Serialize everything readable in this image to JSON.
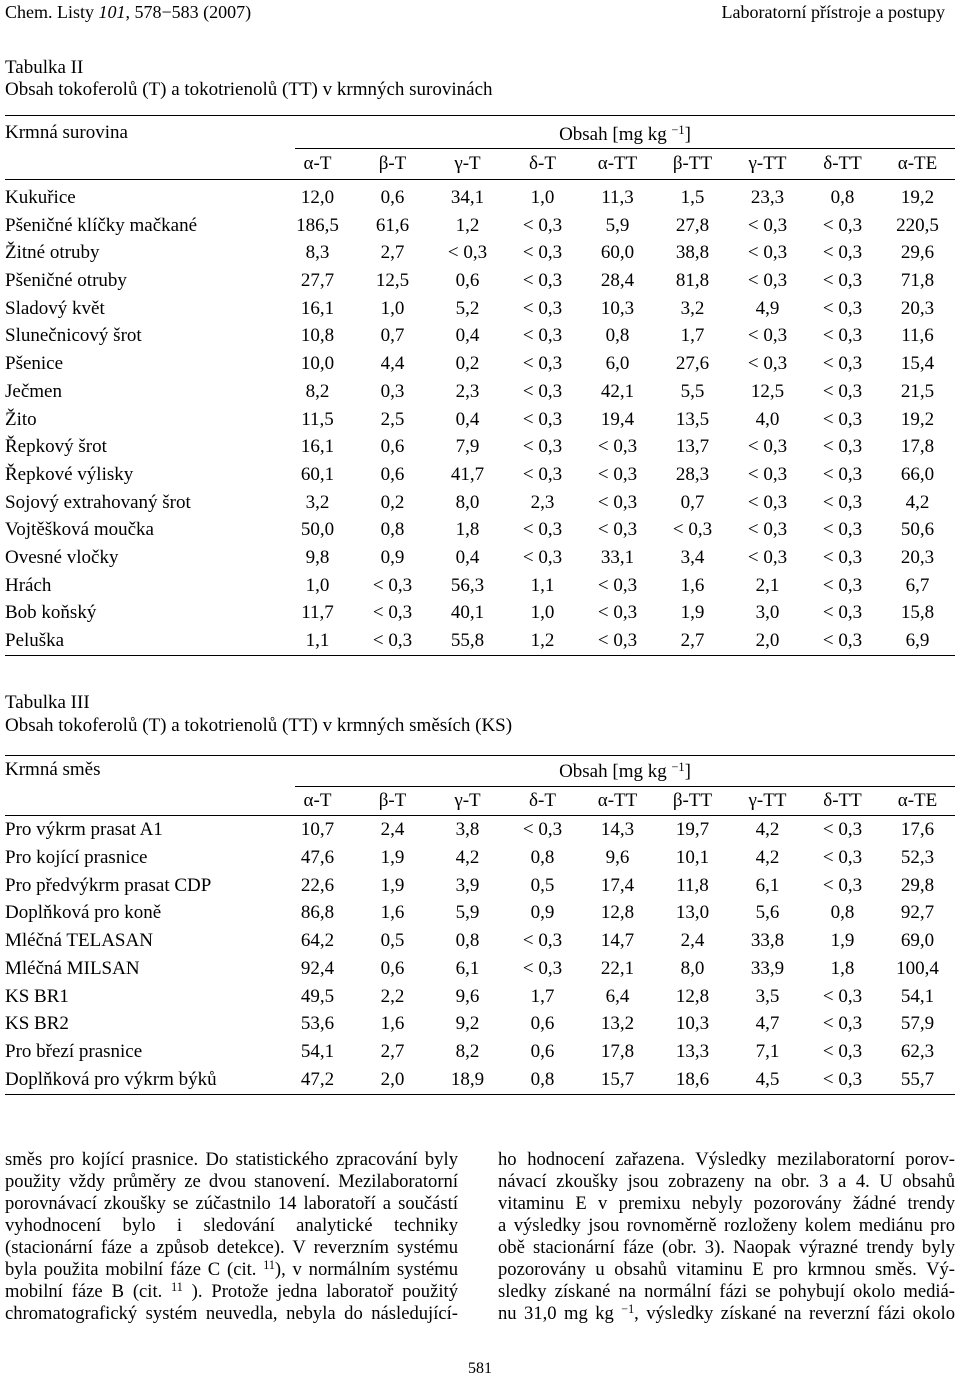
{
  "header": {
    "journal": "Chem. Listy ",
    "volume": "101",
    "pages_year": ", 578−583 (2007)",
    "section": "Laboratorní přístroje a postupy"
  },
  "columns": [
    "α-T",
    "β-T",
    "γ-T",
    "δ-T",
    "α-TT",
    "β-TT",
    "γ-TT",
    "δ-TT",
    "α-TE"
  ],
  "table2": {
    "label": "Tabulka II",
    "caption": "Obsah tokoferolů (T) a tokotrienolů (TT) v krmných surovinách",
    "row_header": "Krmná surovina",
    "unit": {
      "prefix": "Obsah [mg kg ",
      "sup": "−1",
      "suffix": "]"
    },
    "rows": [
      {
        "name": "Kukuřice",
        "values": [
          "12,0",
          "0,6",
          "34,1",
          "1,0",
          "11,3",
          "1,5",
          "23,3",
          "0,8",
          "19,2"
        ]
      },
      {
        "name": "Pšeničné klíčky mačkané",
        "values": [
          "186,5",
          "61,6",
          "1,2",
          "< 0,3",
          "5,9",
          "27,8",
          "< 0,3",
          "< 0,3",
          "220,5"
        ]
      },
      {
        "name": "Žitné otruby",
        "values": [
          "8,3",
          "2,7",
          "< 0,3",
          "< 0,3",
          "60,0",
          "38,8",
          "< 0,3",
          "< 0,3",
          "29,6"
        ]
      },
      {
        "name": "Pšeničné otruby",
        "values": [
          "27,7",
          "12,5",
          "0,6",
          "< 0,3",
          "28,4",
          "81,8",
          "< 0,3",
          "< 0,3",
          "71,8"
        ]
      },
      {
        "name": "Sladový květ",
        "values": [
          "16,1",
          "1,0",
          "5,2",
          "< 0,3",
          "10,3",
          "3,2",
          "4,9",
          "< 0,3",
          "20,3"
        ]
      },
      {
        "name": "Slunečnicový šrot",
        "values": [
          "10,8",
          "0,7",
          "0,4",
          "< 0,3",
          "0,8",
          "1,7",
          "< 0,3",
          "< 0,3",
          "11,6"
        ]
      },
      {
        "name": "Pšenice",
        "values": [
          "10,0",
          "4,4",
          "0,2",
          "< 0,3",
          "6,0",
          "27,6",
          "< 0,3",
          "< 0,3",
          "15,4"
        ]
      },
      {
        "name": "Ječmen",
        "values": [
          "8,2",
          "0,3",
          "2,3",
          "< 0,3",
          "42,1",
          "5,5",
          "12,5",
          "< 0,3",
          "21,5"
        ]
      },
      {
        "name": "Žito",
        "values": [
          "11,5",
          "2,5",
          "0,4",
          "< 0,3",
          "19,4",
          "13,5",
          "4,0",
          "< 0,3",
          "19,2"
        ]
      },
      {
        "name": "Řepkový šrot",
        "values": [
          "16,1",
          "0,6",
          "7,9",
          "< 0,3",
          "< 0,3",
          "13,7",
          "< 0,3",
          "< 0,3",
          "17,8"
        ]
      },
      {
        "name": "Řepkové výlisky",
        "values": [
          "60,1",
          "0,6",
          "41,7",
          "< 0,3",
          "< 0,3",
          "28,3",
          "< 0,3",
          "< 0,3",
          "66,0"
        ]
      },
      {
        "name": "Sojový extrahovaný šrot",
        "values": [
          "3,2",
          "0,2",
          "8,0",
          "2,3",
          "< 0,3",
          "0,7",
          "< 0,3",
          "< 0,3",
          "4,2"
        ]
      },
      {
        "name": "Vojtěšková moučka",
        "values": [
          "50,0",
          "0,8",
          "1,8",
          "< 0,3",
          "< 0,3",
          "< 0,3",
          "< 0,3",
          "< 0,3",
          "50,6"
        ]
      },
      {
        "name": "Ovesné vločky",
        "values": [
          "9,8",
          "0,9",
          "0,4",
          "< 0,3",
          "33,1",
          "3,4",
          "< 0,3",
          "< 0,3",
          "20,3"
        ]
      },
      {
        "name": "Hrách",
        "values": [
          "1,0",
          "< 0,3",
          "56,3",
          "1,1",
          "< 0,3",
          "1,6",
          "2,1",
          "< 0,3",
          "6,7"
        ]
      },
      {
        "name": "Bob koňský",
        "values": [
          "11,7",
          "< 0,3",
          "40,1",
          "1,0",
          "< 0,3",
          "1,9",
          "3,0",
          "< 0,3",
          "15,8"
        ]
      },
      {
        "name": "Peluška",
        "values": [
          "1,1",
          "< 0,3",
          "55,8",
          "1,2",
          "< 0,3",
          "2,7",
          "2,0",
          "< 0,3",
          "6,9"
        ]
      }
    ]
  },
  "table3": {
    "label": "Tabulka III",
    "caption": "Obsah tokoferolů (T) a tokotrienolů (TT) v krmných směsích (KS)",
    "row_header": "Krmná směs",
    "unit": {
      "prefix": "Obsah [mg kg ",
      "sup": "−1",
      "suffix": "]"
    },
    "rows": [
      {
        "name": "Pro výkrm prasat A1",
        "values": [
          "10,7",
          "2,4",
          "3,8",
          "< 0,3",
          "14,3",
          "19,7",
          "4,2",
          "< 0,3",
          "17,6"
        ]
      },
      {
        "name": "Pro kojící prasnice",
        "values": [
          "47,6",
          "1,9",
          "4,2",
          "0,8",
          "9,6",
          "10,1",
          "4,2",
          "< 0,3",
          "52,3"
        ]
      },
      {
        "name": "Pro předvýkrm prasat CDP",
        "values": [
          "22,6",
          "1,9",
          "3,9",
          "0,5",
          "17,4",
          "11,8",
          "6,1",
          "< 0,3",
          "29,8"
        ]
      },
      {
        "name": "Doplňková pro koně",
        "values": [
          "86,8",
          "1,6",
          "5,9",
          "0,9",
          "12,8",
          "13,0",
          "5,6",
          "0,8",
          "92,7"
        ]
      },
      {
        "name": "Mléčná TELASAN",
        "values": [
          "64,2",
          "0,5",
          "0,8",
          "< 0,3",
          "14,7",
          "2,4",
          "33,8",
          "1,9",
          "69,0"
        ]
      },
      {
        "name": "Mléčná MILSAN",
        "values": [
          "92,4",
          "0,6",
          "6,1",
          "< 0,3",
          "22,1",
          "8,0",
          "33,9",
          "1,8",
          "100,4"
        ]
      },
      {
        "name": "KS BR1",
        "values": [
          "49,5",
          "2,2",
          "9,6",
          "1,7",
          "6,4",
          "12,8",
          "3,5",
          "< 0,3",
          "54,1"
        ]
      },
      {
        "name": "KS BR2",
        "values": [
          "53,6",
          "1,6",
          "9,2",
          "0,6",
          "13,2",
          "10,3",
          "4,7",
          "< 0,3",
          "57,9"
        ]
      },
      {
        "name": "Pro březí prasnice",
        "values": [
          "54,1",
          "2,7",
          "8,2",
          "0,6",
          "17,8",
          "13,3",
          "7,1",
          "< 0,3",
          "62,3"
        ]
      },
      {
        "name": "Doplňková pro výkrm býků",
        "values": [
          "47,2",
          "2,0",
          "18,9",
          "0,8",
          "15,7",
          "18,6",
          "4,5",
          "< 0,3",
          "55,7"
        ]
      }
    ]
  },
  "body": {
    "left": [
      {
        "text": "směs pro kojící prasnice. Do statistického zpracování byly"
      },
      {
        "text": "použity vždy průměry ze dvou stanovení. Mezilaboratorní"
      },
      {
        "text": "porovnávací zkoušky se zúčastnilo 14 laboratoří a součástí"
      },
      {
        "text": "vyhodnocení bylo i sledování analytické techniky"
      },
      {
        "text": "(stacionární fáze a způsob detekce). V reverzním systému"
      },
      {
        "text": "byla použita mobilní fáze C (cit. ",
        "sup": "11",
        "after": "), v normálním systému"
      },
      {
        "text": "mobilní fáze B (cit. ",
        "sup": "11",
        "after": " ). Protože jedna laboratoř použitý"
      },
      {
        "text": "chromatografický systém neuvedla, nebyla do následující-"
      }
    ],
    "right": [
      {
        "text": "ho hodnocení zařazena. Výsledky mezilaboratorní porov-"
      },
      {
        "text": "návací zkoušky jsou zobrazeny na obr. 3 a 4. U obsahů"
      },
      {
        "text": "vitaminu E v premixu nebyly pozorovány žádné trendy"
      },
      {
        "text": "a výsledky jsou rovnoměrně rozloženy kolem mediánu pro"
      },
      {
        "text": "obě stacionární fáze (obr. 3). Naopak výrazné trendy byly"
      },
      {
        "text": "pozorovány u obsahů vitaminu E pro krmnou směs. Vý-"
      },
      {
        "text": "sledky získané na normální fázi se pohybují okolo mediá-"
      },
      {
        "text": "nu 31,0 mg kg ",
        "sup": "−1",
        "after": ", výsledky získané na reverzní fázi okolo"
      }
    ]
  },
  "page_number": "581"
}
